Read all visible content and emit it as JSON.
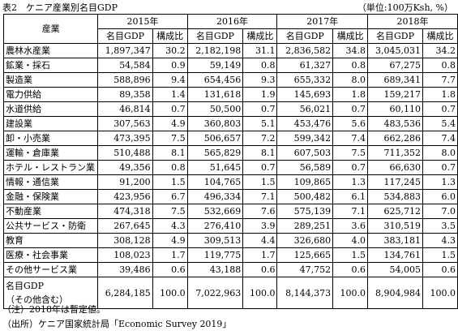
{
  "caption": {
    "title": "表2　ケニア産業別名目GDP",
    "unit": "（単位:100万Ksh, %）"
  },
  "table": {
    "header_category": "産業",
    "years": [
      "2015年",
      "2016年",
      "2017年",
      "2018年"
    ],
    "sub_headers": {
      "value": "名目GDP",
      "share": "構成比"
    },
    "rows": [
      {
        "name": "農林水産業",
        "cells": [
          "1,897,347",
          "30.2",
          "2,182,198",
          "31.1",
          "2,836,582",
          "34.8",
          "3,045,031",
          "34.2"
        ]
      },
      {
        "name": "鉱業・採石",
        "cells": [
          "54,584",
          "0.9",
          "59,149",
          "0.8",
          "61,327",
          "0.8",
          "67,275",
          "0.8"
        ]
      },
      {
        "name": "製造業",
        "cells": [
          "588,896",
          "9.4",
          "654,456",
          "9.3",
          "655,332",
          "8.0",
          "689,341",
          "7.7"
        ]
      },
      {
        "name": "電力供給",
        "cells": [
          "89,358",
          "1.4",
          "131,618",
          "1.9",
          "145,693",
          "1.8",
          "159,217",
          "1.8"
        ]
      },
      {
        "name": "水道供給",
        "cells": [
          "46,814",
          "0.7",
          "50,500",
          "0.7",
          "56,021",
          "0.7",
          "60,110",
          "0.7"
        ]
      },
      {
        "name": "建設業",
        "cells": [
          "307,563",
          "4.9",
          "360,803",
          "5.1",
          "453,476",
          "5.6",
          "483,536",
          "5.4"
        ]
      },
      {
        "name": "卸・小売業",
        "cells": [
          "473,395",
          "7.5",
          "506,657",
          "7.2",
          "599,342",
          "7.4",
          "662,286",
          "7.4"
        ]
      },
      {
        "name": "運輸・倉庫業",
        "cells": [
          "510,488",
          "8.1",
          "565,829",
          "8.1",
          "607,503",
          "7.5",
          "711,352",
          "8.0"
        ]
      },
      {
        "name": "ホテル・レストラン業",
        "cells": [
          "49,356",
          "0.8",
          "51,645",
          "0.7",
          "56,589",
          "0.7",
          "66,630",
          "0.7"
        ]
      },
      {
        "name": "情報・通信業",
        "cells": [
          "91,200",
          "1.5",
          "104,765",
          "1.5",
          "109,865",
          "1.3",
          "117,245",
          "1.3"
        ]
      },
      {
        "name": "金融・保険業",
        "cells": [
          "423,956",
          "6.7",
          "496,334",
          "7.1",
          "500,482",
          "6.1",
          "534,883",
          "6.0"
        ]
      },
      {
        "name": "不動産業",
        "cells": [
          "474,318",
          "7.5",
          "532,669",
          "7.6",
          "575,139",
          "7.1",
          "625,712",
          "7.0"
        ]
      },
      {
        "name": "公共サービス・防衛",
        "cells": [
          "267,645",
          "4.3",
          "276,410",
          "3.9",
          "289,251",
          "3.6",
          "310,519",
          "3.5"
        ]
      },
      {
        "name": "教育",
        "cells": [
          "308,128",
          "4.9",
          "309,513",
          "4.4",
          "326,680",
          "4.0",
          "383,181",
          "4.3"
        ]
      },
      {
        "name": "医療・社会事業",
        "cells": [
          "108,023",
          "1.7",
          "119,775",
          "1.7",
          "125,665",
          "1.5",
          "134,761",
          "1.5"
        ]
      },
      {
        "name": "その他サービス業",
        "cells": [
          "39,486",
          "0.6",
          "43,188",
          "0.6",
          "47,752",
          "0.6",
          "54,005",
          "0.6"
        ]
      }
    ],
    "total": {
      "name_line1": "名目GDP",
      "name_line2": "（その他含む）",
      "cells": [
        "6,284,185",
        "100.0",
        "7,022,963",
        "100.0",
        "8,144,373",
        "100.0",
        "8,904,984",
        "100.0"
      ]
    }
  },
  "notes": [
    "（注）2018年は暫定値。",
    "（出所）ケニア国家統計局「Economic Survey 2019」"
  ]
}
